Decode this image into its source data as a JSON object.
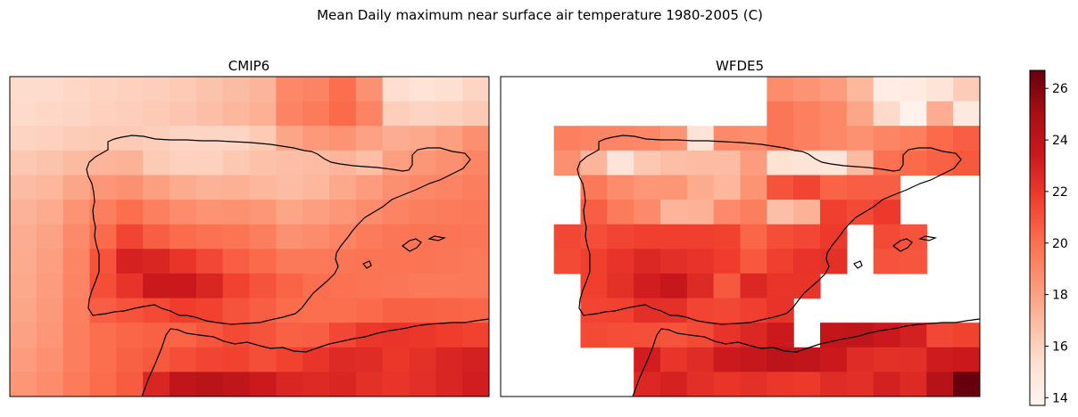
{
  "title": "Mean Daily maximum near surface air temperature 1980-2005 (C)",
  "chart_data": {
    "type": "heatmap",
    "colormap": "Reds",
    "vmin": 13.7,
    "vmax": 26.7,
    "colorbar_ticks": [
      14,
      16,
      18,
      20,
      22,
      24,
      26
    ],
    "colorbar_tick_labels": [
      "14",
      "16",
      "18",
      "20",
      "22",
      "24",
      "26"
    ],
    "panels": [
      {
        "title": "CMIP6",
        "grid": [
          [
            15.5,
            15.5,
            15.7,
            15.9,
            16.0,
            16.1,
            16.3,
            16.6,
            16.9,
            17.2,
            19.0,
            19.2,
            20.0,
            18.6,
            15.4,
            15.1,
            15.3,
            15.8
          ],
          [
            15.6,
            15.7,
            15.8,
            16.0,
            16.1,
            16.3,
            16.5,
            16.8,
            17.1,
            17.4,
            19.2,
            19.5,
            20.2,
            19.2,
            16.1,
            15.9,
            16.0,
            16.3
          ],
          [
            15.9,
            16.0,
            16.2,
            16.3,
            16.3,
            16.1,
            15.8,
            15.8,
            15.8,
            16.3,
            17.8,
            18.3,
            18.5,
            18.0,
            17.5,
            17.7,
            18.1,
            18.7
          ],
          [
            16.4,
            16.6,
            17.0,
            17.2,
            17.3,
            16.3,
            16.0,
            16.0,
            16.4,
            16.7,
            16.8,
            16.9,
            17.2,
            16.8,
            18.1,
            18.4,
            18.7,
            19.1
          ],
          [
            16.9,
            17.1,
            17.8,
            18.4,
            18.6,
            18.1,
            17.6,
            17.3,
            17.4,
            17.1,
            16.9,
            17.1,
            17.7,
            18.2,
            18.7,
            19.0,
            19.2,
            19.4
          ],
          [
            17.3,
            17.6,
            18.5,
            19.4,
            20.0,
            19.3,
            18.8,
            18.5,
            18.6,
            18.4,
            17.8,
            18.1,
            18.4,
            18.8,
            19.2,
            19.4,
            19.5,
            19.6
          ],
          [
            17.5,
            17.9,
            18.9,
            20.2,
            21.5,
            20.6,
            20.1,
            19.9,
            19.8,
            19.4,
            18.6,
            18.8,
            19.2,
            19.5,
            19.7,
            19.8,
            19.8,
            19.7
          ],
          [
            17.6,
            18.1,
            19.1,
            21.0,
            23.0,
            22.8,
            22.1,
            21.4,
            20.6,
            20.2,
            19.6,
            19.6,
            19.7,
            19.8,
            19.8,
            19.8,
            19.7,
            19.6
          ],
          [
            17.7,
            18.2,
            19.2,
            21.2,
            22.2,
            23.5,
            23.5,
            22.8,
            21.6,
            21.0,
            20.4,
            20.0,
            19.9,
            19.8,
            19.7,
            19.6,
            19.6,
            19.6
          ],
          [
            17.8,
            18.3,
            19.3,
            20.6,
            21.0,
            21.3,
            21.8,
            21.6,
            21.0,
            20.6,
            20.1,
            20.0,
            20.0,
            20.2,
            20.5,
            20.5,
            20.4,
            20.3
          ],
          [
            18.0,
            18.4,
            19.4,
            20.0,
            20.3,
            20.5,
            20.4,
            20.9,
            21.3,
            21.0,
            20.5,
            20.6,
            21.4,
            22.0,
            22.1,
            22.0,
            21.8,
            21.6
          ],
          [
            18.2,
            18.6,
            19.4,
            20.0,
            20.5,
            20.8,
            21.2,
            21.5,
            21.6,
            21.2,
            21.6,
            22.1,
            22.6,
            22.5,
            22.0,
            22.3,
            22.8,
            23.1
          ],
          [
            18.4,
            18.8,
            19.5,
            20.1,
            20.7,
            22.8,
            23.9,
            24.2,
            23.9,
            23.4,
            22.8,
            22.6,
            22.8,
            22.3,
            22.1,
            22.4,
            22.8,
            23.2
          ]
        ]
      },
      {
        "title": "WFDE5",
        "grid": [
          [
            null,
            null,
            null,
            null,
            null,
            null,
            null,
            null,
            null,
            null,
            18.8,
            18.5,
            18.2,
            17.1,
            14.3,
            14.5,
            15.0,
            16.2
          ],
          [
            null,
            null,
            null,
            null,
            null,
            null,
            null,
            null,
            null,
            null,
            19.7,
            19.3,
            19.0,
            17.8,
            15.6,
            13.9,
            17.5,
            14.6
          ],
          [
            null,
            null,
            19.3,
            19.2,
            19.1,
            19.0,
            18.5,
            15.0,
            18.9,
            18.8,
            19.7,
            19.3,
            19.0,
            18.6,
            19.1,
            19.3,
            20.2,
            20.6
          ],
          [
            null,
            null,
            18.7,
            17.2,
            15.0,
            16.4,
            16.8,
            16.9,
            16.9,
            18.2,
            15.2,
            15.0,
            14.9,
            17.0,
            19.9,
            20.2,
            20.5,
            20.8
          ],
          [
            null,
            null,
            null,
            19.6,
            18.8,
            18.4,
            18.4,
            17.6,
            17.1,
            18.5,
            21.0,
            21.5,
            20.4,
            20.6,
            20.6,
            null,
            null,
            null
          ],
          [
            null,
            null,
            null,
            20.6,
            19.5,
            18.9,
            17.2,
            17.3,
            18.9,
            19.4,
            16.8,
            17.3,
            21.7,
            21.3,
            21.9,
            null,
            null,
            null
          ],
          [
            null,
            null,
            21.4,
            21.2,
            21.5,
            21.7,
            21.7,
            21.7,
            21.6,
            20.3,
            21.2,
            21.4,
            21.9,
            null,
            21.3,
            21.0,
            null,
            null
          ],
          [
            null,
            null,
            21.3,
            21.7,
            22.2,
            22.7,
            22.4,
            22.2,
            21.8,
            20.8,
            21.7,
            22.2,
            22.3,
            null,
            21.0,
            20.9,
            null,
            null
          ],
          [
            null,
            null,
            null,
            21.7,
            22.3,
            23.2,
            23.6,
            22.6,
            20.8,
            22.7,
            22.1,
            22.1,
            null,
            null,
            null,
            null,
            null,
            null
          ],
          [
            null,
            null,
            null,
            21.5,
            21.6,
            22.4,
            22.3,
            21.5,
            21.4,
            21.7,
            22.2,
            null,
            null,
            null,
            null,
            null,
            null,
            null
          ],
          [
            null,
            null,
            null,
            21.3,
            21.2,
            21.1,
            21.0,
            21.3,
            22.2,
            22.7,
            23.4,
            null,
            23.8,
            23.9,
            23.5,
            23.1,
            21.4,
            21.6
          ],
          [
            null,
            null,
            null,
            null,
            null,
            23.2,
            22.1,
            22.5,
            23.4,
            23.7,
            24.1,
            23.9,
            23.5,
            22.5,
            22.3,
            22.4,
            23.3,
            23.5
          ],
          [
            null,
            null,
            null,
            null,
            null,
            22.7,
            23.0,
            22.4,
            22.1,
            22.3,
            22.0,
            21.9,
            22.5,
            22.4,
            23.1,
            22.6,
            24.4,
            26.7
          ]
        ]
      }
    ]
  }
}
